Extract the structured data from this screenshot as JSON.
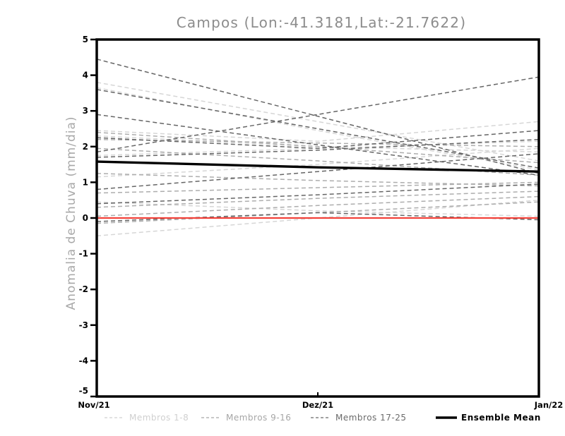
{
  "title": "Campos (Lon:-41.3181,Lat:-21.7622)",
  "y_axis": {
    "label": "Anomalia de Chuva (mm/dia)"
  },
  "x_axis": {
    "labels": [
      "Nov/21",
      "Dez/21",
      "Jan/22"
    ]
  },
  "colors": {
    "background": "#ffffff",
    "axis_frame": "#000000",
    "title_text": "#8c8c8c",
    "y_axis_label_text": "#a8a8a8",
    "tick_label_text": "#000000",
    "zero_line": "#f2423a",
    "ensemble_mean": "#000000",
    "members_1_8": "#d6d6d6",
    "members_9_16": "#adadad",
    "members_17_25": "#666666"
  },
  "legend": {
    "items": [
      {
        "label": "Membros 1-8",
        "color": "#d0d0d0",
        "style": "dashed"
      },
      {
        "label": "Membros 9-16",
        "color": "#a6a6a6",
        "style": "dashed"
      },
      {
        "label": "Membros 17-25",
        "color": "#6b6b6b",
        "style": "dashed"
      },
      {
        "label": "Ensemble Mean",
        "color": "#000000",
        "style": "solid"
      }
    ]
  },
  "chart_data": {
    "type": "line",
    "title": "Campos (Lon:-41.3181,Lat:-21.7622)",
    "xlabel": "",
    "ylabel": "Anomalia de Chuva (mm/dia)",
    "x_categories": [
      "Nov/21",
      "Dez/21",
      "Jan/22"
    ],
    "ylim": [
      -5,
      5
    ],
    "y_ticks": [
      5,
      4,
      3,
      2,
      1,
      0,
      -1,
      -2,
      -3,
      -4,
      -5
    ],
    "grid": false,
    "legend_position": "bottom",
    "member_groups": [
      {
        "name": "Membros 1-8",
        "color": "#d6d6d6",
        "line_style": "dashed",
        "lines": [
          [
            3.8,
            2.7,
            1.6
          ],
          [
            3.65,
            2.45,
            1.35
          ],
          [
            2.45,
            2.15,
            2.7
          ],
          [
            2.3,
            2.0,
            1.85
          ],
          [
            1.75,
            1.95,
            2.15
          ],
          [
            1.15,
            1.5,
            1.95
          ],
          [
            -0.5,
            0.0,
            0.5
          ],
          [
            0.45,
            0.2,
            0.05
          ]
        ]
      },
      {
        "name": "Membros 9-16",
        "color": "#adadad",
        "line_style": "dashed",
        "lines": [
          [
            2.4,
            2.0,
            1.55
          ],
          [
            2.2,
            2.1,
            2.0
          ],
          [
            1.95,
            1.6,
            1.2
          ],
          [
            1.25,
            1.05,
            0.9
          ],
          [
            0.7,
            0.85,
            1.0
          ],
          [
            0.3,
            0.55,
            0.75
          ],
          [
            0.05,
            0.35,
            0.6
          ],
          [
            -0.15,
            0.15,
            0.45
          ]
        ]
      },
      {
        "name": "Membros 17-25",
        "color": "#666666",
        "line_style": "dashed",
        "lines": [
          [
            4.45,
            2.85,
            1.25
          ],
          [
            3.6,
            2.5,
            1.4
          ],
          [
            2.9,
            2.05,
            1.2
          ],
          [
            1.85,
            2.9,
            3.95
          ],
          [
            2.25,
            1.95,
            2.45
          ],
          [
            1.7,
            1.9,
            2.2
          ],
          [
            0.8,
            1.3,
            1.8
          ],
          [
            0.4,
            0.65,
            0.95
          ],
          [
            -0.1,
            0.15,
            -0.05
          ]
        ]
      }
    ],
    "zero_line": {
      "value": 0,
      "color": "#f2423a"
    },
    "ensemble_mean": {
      "name": "Ensemble Mean",
      "color": "#000000",
      "values": [
        1.58,
        1.42,
        1.3
      ]
    }
  }
}
